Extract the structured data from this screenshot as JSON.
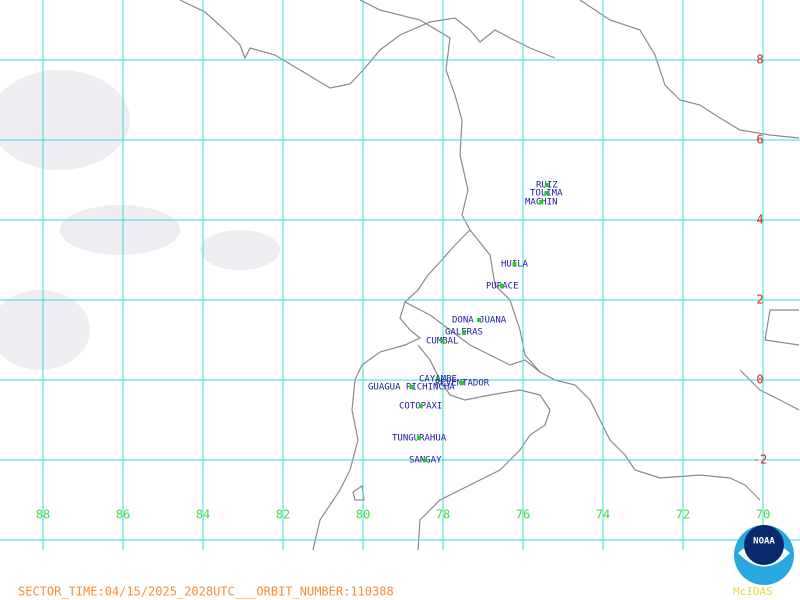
{
  "map": {
    "lat_labels": [
      8,
      6,
      4,
      2,
      0,
      -2
    ],
    "lon_labels": [
      88,
      86,
      84,
      82,
      80,
      78,
      76,
      74,
      72,
      70
    ],
    "volcanoes": [
      {
        "name": "RUIZ"
      },
      {
        "name": "TOLIMA"
      },
      {
        "name": "MACHIN"
      },
      {
        "name": "HUILA"
      },
      {
        "name": "PURACE"
      },
      {
        "name": "DONA JUANA"
      },
      {
        "name": "GALERAS"
      },
      {
        "name": "CUMBAL"
      },
      {
        "name": "CAYAMBE"
      },
      {
        "name": "REVENTADOR"
      },
      {
        "name": "GUAGUA PICHINCHA"
      },
      {
        "name": "COTOPAXI"
      },
      {
        "name": "TUNGURAHUA"
      },
      {
        "name": "SANGAY"
      }
    ]
  },
  "footer": {
    "sector_time": "SECTOR_TIME:04/15/2025_2028UTC___ORBIT_NUMBER:110388"
  },
  "logo": {
    "text": "NOAA",
    "brand": "McIDAS"
  }
}
